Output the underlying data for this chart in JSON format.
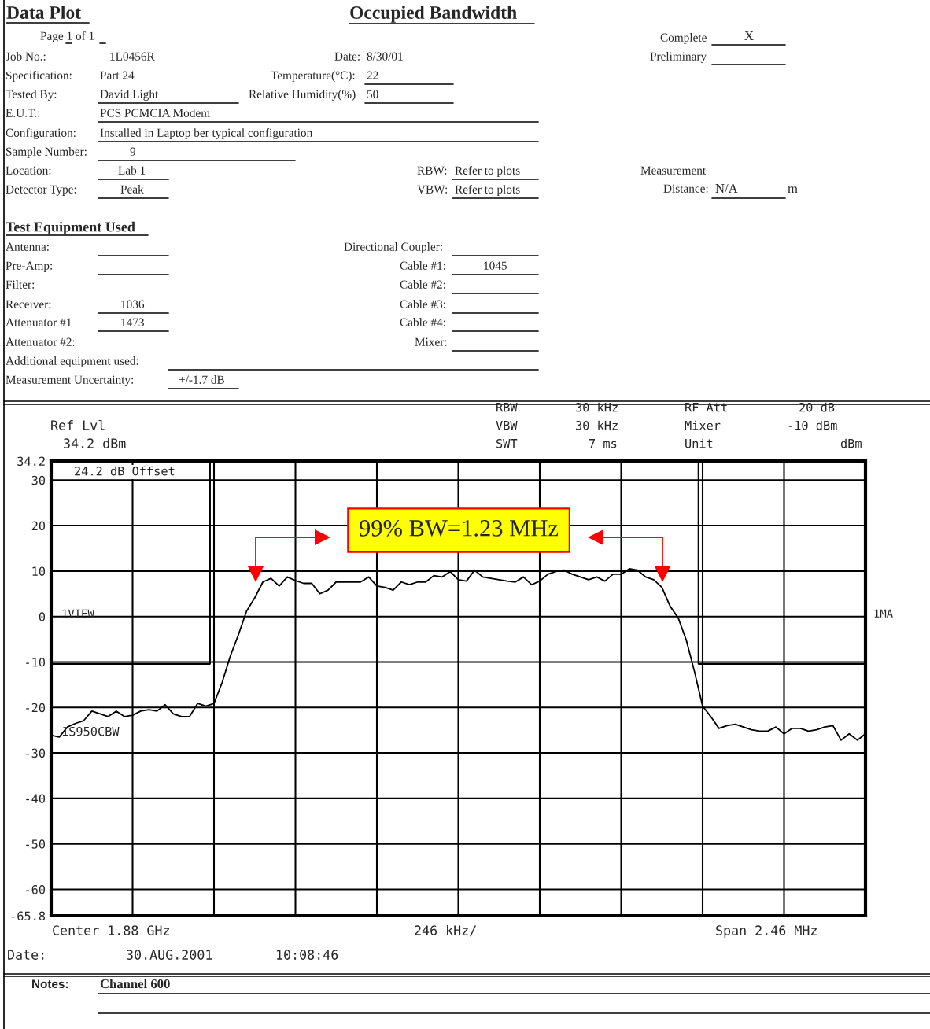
{
  "chart_data": {
    "type": "line",
    "title": "Occupied Bandwidth",
    "categories": [
      null,
      null,
      null,
      null,
      null,
      null,
      null,
      null,
      null,
      null,
      null,
      null,
      null,
      null,
      null,
      null,
      null,
      null,
      null,
      null,
      null,
      null,
      null,
      null,
      null,
      null,
      null,
      null,
      null,
      null,
      null,
      null,
      null,
      null,
      null,
      null,
      null,
      null,
      null,
      null,
      null,
      null,
      null,
      null,
      null,
      null,
      null,
      null,
      null,
      null,
      null,
      null,
      null,
      null,
      null,
      null,
      null,
      null,
      null,
      null,
      null,
      null,
      null,
      null,
      null,
      null,
      null,
      null,
      null,
      null,
      null,
      null,
      null,
      null,
      null,
      null,
      null,
      null,
      null,
      null,
      null,
      null,
      null,
      null,
      null,
      null,
      null,
      null,
      null,
      null,
      null,
      null,
      null,
      null,
      null,
      null,
      null,
      null,
      null,
      null,
      null
    ],
    "series": [
      {
        "color": "#000000",
        "values": [
          -26.1,
          -26.5,
          -24.3,
          -23.5,
          -22.9,
          -20.8,
          -21.4,
          -22.0,
          -20.8,
          -22.0,
          -21.7,
          -20.8,
          -20.5,
          -20.8,
          -19.4,
          -21.4,
          -22.0,
          -22.0,
          -19.1,
          -19.7,
          -19.1,
          -14.5,
          -8.7,
          -4.0,
          1.2,
          4.1,
          7.6,
          8.4,
          6.7,
          8.7,
          7.9,
          7.3,
          7.3,
          5.0,
          5.8,
          7.6,
          7.6,
          7.6,
          7.6,
          8.7,
          6.7,
          6.4,
          5.8,
          7.6,
          7.0,
          7.6,
          7.6,
          9.0,
          8.7,
          9.9,
          8.1,
          7.8,
          10.2,
          8.7,
          8.4,
          8.1,
          7.8,
          7.6,
          8.7,
          7.0,
          7.8,
          9.3,
          9.9,
          10.2,
          9.3,
          8.7,
          8.1,
          8.7,
          7.8,
          9.3,
          9.3,
          10.5,
          10.2,
          8.7,
          8.1,
          6.4,
          2.3,
          -0.3,
          -5.2,
          -12.1,
          -19.7,
          -22.0,
          -24.6,
          -24.0,
          -23.7,
          -24.3,
          -24.9,
          -25.2,
          -25.2,
          -24.3,
          -25.8,
          -24.6,
          -24.6,
          -25.2,
          -24.9,
          -24.3,
          -24.0,
          -27.2,
          -25.8,
          -27.2,
          -25.8
        ]
      },
      {
        "type": "step",
        "color": "#000000",
        "values": [
          -10.4,
          -10.4,
          -10.4,
          -10.4,
          -10.4,
          -10.4,
          -10.4,
          -10.4,
          -10.4,
          -10.4,
          -10.4,
          -10.4,
          -10.4,
          -10.4,
          -10.4,
          -10.4,
          -10.4,
          -10.4,
          -10.4,
          -10.4,
          34.2,
          34.2,
          34.2,
          34.2,
          34.2,
          34.2,
          34.2,
          34.2,
          34.2,
          34.2,
          34.2,
          34.2,
          34.2,
          34.2,
          34.2,
          34.2,
          34.2,
          34.2,
          34.2,
          34.2,
          34.2,
          34.2,
          34.2,
          34.2,
          34.2,
          34.2,
          34.2,
          34.2,
          34.2,
          34.2,
          34.2,
          34.2,
          34.2,
          34.2,
          34.2,
          34.2,
          34.2,
          34.2,
          34.2,
          34.2,
          34.2,
          34.2,
          34.2,
          34.2,
          34.2,
          34.2,
          34.2,
          34.2,
          34.2,
          34.2,
          34.2,
          34.2,
          34.2,
          34.2,
          34.2,
          34.2,
          34.2,
          34.2,
          34.2,
          34.2,
          -10.4,
          -10.4,
          -10.4,
          -10.4,
          -10.4,
          -10.4,
          -10.4,
          -10.4,
          -10.4,
          -10.4,
          -10.4,
          -10.4,
          -10.4,
          -10.4,
          -10.4,
          -10.4,
          -10.4,
          -10.4,
          -10.4,
          -10.4,
          -10.4
        ]
      }
    ],
    "ylim": [
      -65.8,
      34.2
    ],
    "yticks": [
      34.2,
      30,
      20,
      10,
      0,
      {
        "value": -10,
        "label": "-10"
      },
      {
        "value": -20,
        "label": "-20"
      },
      {
        "value": -30,
        "label": "-30"
      },
      {
        "value": -40,
        "label": "-40"
      },
      {
        "value": -50,
        "label": "-50"
      },
      {
        "value": -60,
        "label": "-60"
      },
      {
        "value": -65.8,
        "label": "-65.8"
      }
    ],
    "grid": true,
    "tick_labels": "y",
    "annotations": [
      "Data Plot",
      "Page 1 of 1",
      "Complete",
      "X",
      "Preliminary",
      "Job No.:",
      "1L0456R",
      "Date:",
      "8/30/01",
      "Specification:",
      "Part 24",
      "Temperature(°C):",
      "22",
      "Tested By:",
      "David Light",
      "Relative Humidity(%)",
      "50",
      "E.U.T.:",
      "PCS PCMCIA Modem",
      "Configuration:",
      "Installed in Laptop ber typical configuration",
      "Sample Number:",
      "9",
      "Location:",
      "Lab 1",
      "RBW:",
      "Refer to plots",
      "Measurement",
      "Detector Type:",
      "Peak",
      "VBW:",
      "Refer to plots",
      "Distance:",
      "N/A",
      "m",
      "Test Equipment Used",
      "Antenna:",
      "Directional Coupler:",
      "Pre-Amp:",
      "Cable #1:",
      "1045",
      "Filter:",
      "Cable #2:",
      "Receiver:",
      "1036",
      "Cable #3:",
      "Attenuator #1",
      "1473",
      "Cable #4:",
      "Attenuator #2:",
      "Mixer:",
      "Additional equipment used:",
      "Measurement Uncertainty:",
      "+/-1.7 dB",
      "Ref Lvl",
      "34.2 dBm",
      "RBW",
      "30 kHz",
      "RF Att",
      "20 dB",
      "VBW",
      "30 kHz",
      "Mixer",
      "-10 dBm",
      "SWT",
      "7 ms",
      "Unit",
      "dBm",
      "24.2 dB Offset",
      "1VIEW",
      "1S950CBW",
      "1MA",
      "Center 1.88 GHz",
      "246 kHz/",
      "Span 2.46 MHz",
      "Date:",
      "30.AUG.2001",
      "10:08:46",
      "Notes:",
      "Channel 600",
      "99% BW=1.23 MHz"
    ]
  }
}
